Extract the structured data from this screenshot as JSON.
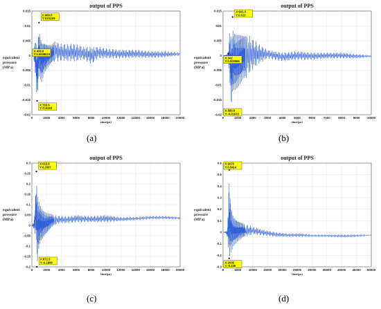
{
  "colors": {
    "signal": "#2a5bd7",
    "annotation_fill": "#ffff00",
    "grid": "#d8d8d8"
  },
  "chart_data": [
    {
      "panel_label": "(a)",
      "type": "line",
      "title": "output of PPS",
      "xlabel": "time(μs)",
      "ylabel": [
        "equivalent",
        "pressure",
        "(MPa)"
      ],
      "xlim": [
        0,
        20000
      ],
      "ylim": [
        -0.02,
        0.015
      ],
      "xticks": [
        0,
        2000,
        4000,
        6000,
        8000,
        10000,
        12000,
        14000,
        16000,
        18000,
        20000
      ],
      "xtick_labels": [
        "0",
        "2000",
        "4000",
        "6000",
        "8000",
        "10000",
        "12000",
        "14000",
        "16000",
        "18000",
        "20000"
      ],
      "yticks": [
        -0.02,
        -0.015,
        -0.01,
        -0.005,
        0,
        0.005,
        0.01,
        0.015
      ],
      "ytick_labels": [
        "-0.02",
        "-0.015",
        "-0.01",
        "-0.005",
        "0",
        "0.005",
        "0.01",
        "0.015"
      ],
      "grid": true,
      "annotations": [
        {
          "x": 960.5,
          "y": 0.01109,
          "lines": [
            "X:960.5",
            "Y:0.01109"
          ],
          "box": "right-above"
        },
        {
          "x": 438.8,
          "y": 0.000965,
          "lines": [
            "X:438.8",
            "Y:0.0009619"
          ],
          "box": "left"
        },
        {
          "x": 703.6,
          "y": -0.0153,
          "lines": [
            "X:703.6",
            "Y:-0.0153"
          ],
          "box": "right-below"
        }
      ],
      "envelope": [
        [
          0,
          0,
          0
        ],
        [
          250,
          0.0005,
          -0.0008
        ],
        [
          450,
          0.007,
          -0.006
        ],
        [
          700,
          0.005,
          -0.0153
        ],
        [
          960,
          0.0111,
          -0.007
        ],
        [
          1300,
          0.007,
          -0.009
        ],
        [
          1700,
          0.006,
          -0.006
        ],
        [
          2100,
          0.0045,
          -0.0045
        ],
        [
          2600,
          0.004,
          -0.003
        ],
        [
          3200,
          0.005,
          -0.002
        ],
        [
          4000,
          0.004,
          -0.002
        ],
        [
          5000,
          0.004,
          -0.002
        ],
        [
          6000,
          0.004,
          -0.002
        ],
        [
          7000,
          0.003,
          -0.0015
        ],
        [
          8000,
          0.003,
          -0.003
        ],
        [
          9000,
          0.003,
          -0.001
        ],
        [
          10000,
          0.0025,
          -0.001
        ],
        [
          12000,
          0.002,
          -0.001
        ],
        [
          14000,
          0.002,
          -0.0008
        ],
        [
          16000,
          0.0015,
          -0.0008
        ],
        [
          18000,
          0.0014,
          -0.0006
        ],
        [
          20000,
          0.001,
          0.0
        ]
      ]
    },
    {
      "panel_label": "(b)",
      "type": "line",
      "title": "output of PPS",
      "xlabel": "time(μs)",
      "ylabel": [
        "equivalent",
        "pressure",
        "(MPa)"
      ],
      "xlim": [
        0,
        10000
      ],
      "ylim": [
        -0.02,
        0.015
      ],
      "xticks": [
        0,
        1000,
        2000,
        3000,
        4000,
        5000,
        6000,
        7000,
        8000,
        9000,
        10000
      ],
      "xtick_labels": [
        "0",
        "1000",
        "2000",
        "3000",
        "4000",
        "5000",
        "6000",
        "7000",
        "8000",
        "9000",
        "10000"
      ],
      "yticks": [
        -0.02,
        -0.015,
        -0.01,
        -0.005,
        0,
        0.005,
        0.01,
        0.015
      ],
      "ytick_labels": [
        "-0.02",
        "-0.015",
        "-0.01",
        "-0.005",
        "0",
        "0.005",
        "0.01",
        "0.015"
      ],
      "grid": true,
      "annotations": [
        {
          "x": 641.3,
          "y": 0.013,
          "lines": [
            "X:641.3",
            "Y:0.013"
          ],
          "box": "right-above"
        },
        {
          "x": 342,
          "y": 0.000596,
          "lines": [
            "X:342",
            "Y:0.000596"
          ],
          "box": "left-below"
        },
        {
          "x": 589.8,
          "y": -0.01933,
          "lines": [
            "X:589.8",
            "Y:-0.01933"
          ],
          "box": "left-below"
        }
      ],
      "envelope": [
        [
          0,
          0,
          0
        ],
        [
          200,
          0.0003,
          -0.0003
        ],
        [
          342,
          0.0006,
          -0.0006
        ],
        [
          450,
          0.011,
          -0.009
        ],
        [
          590,
          0.009,
          -0.0193
        ],
        [
          641,
          0.013,
          -0.012
        ],
        [
          800,
          0.01,
          -0.012
        ],
        [
          1000,
          0.009,
          -0.011
        ],
        [
          1300,
          0.008,
          -0.009
        ],
        [
          1700,
          0.007,
          -0.007
        ],
        [
          2000,
          0.006,
          -0.005
        ],
        [
          2400,
          0.004,
          -0.003
        ],
        [
          3000,
          0.002,
          -0.001
        ],
        [
          4000,
          0.001,
          -0.002
        ],
        [
          5000,
          0.0015,
          -0.0015
        ],
        [
          6000,
          0.001,
          -0.0015
        ],
        [
          7000,
          0.001,
          -0.001
        ],
        [
          8000,
          0.001,
          -0.001
        ],
        [
          9000,
          0.0005,
          -0.001
        ],
        [
          10000,
          0.0,
          -0.0005
        ]
      ]
    },
    {
      "panel_label": "(c)",
      "type": "line",
      "title": "output of PPS",
      "xlabel": "time(μs)",
      "ylabel": [
        "equivalent",
        "pressure",
        "(MPa)"
      ],
      "xlim": [
        0,
        20000
      ],
      "ylim": [
        -0.2,
        0.3
      ],
      "xticks": [
        0,
        2000,
        4000,
        6000,
        8000,
        10000,
        12000,
        14000,
        16000,
        18000,
        20000
      ],
      "xtick_labels": [
        "0",
        "2000",
        "4000",
        "6000",
        "8000",
        "10000",
        "12000",
        "14000",
        "16000",
        "18000",
        "20000"
      ],
      "yticks": [
        -0.2,
        -0.15,
        -0.1,
        -0.05,
        0,
        0.05,
        0.1,
        0.15,
        0.2,
        0.25,
        0.3
      ],
      "ytick_labels": [
        "-0.2",
        "-0.15",
        "-0.1",
        "-0.05",
        "0",
        "0.05",
        "0.1",
        "0.15",
        "0.2",
        "0.25",
        "0.3"
      ],
      "grid": true,
      "annotations": [
        {
          "x": 613.6,
          "y": 0.2597,
          "lines": [
            "X:613.6",
            "Y:0.2597"
          ],
          "box": "right-above"
        },
        {
          "x": 672.3,
          "y": -0.1999,
          "lines": [
            "X:672.3",
            "Y:-0.1999"
          ],
          "box": "right-above"
        }
      ],
      "envelope": [
        [
          0,
          0,
          0
        ],
        [
          300,
          0.02,
          -0.02
        ],
        [
          614,
          0.2597,
          -0.08
        ],
        [
          700,
          0.2,
          -0.1999
        ],
        [
          900,
          0.16,
          -0.12
        ],
        [
          1200,
          0.12,
          -0.08
        ],
        [
          1600,
          0.09,
          -0.06
        ],
        [
          2000,
          0.07,
          -0.04
        ],
        [
          2500,
          0.06,
          -0.02
        ],
        [
          3000,
          0.05,
          0.0
        ],
        [
          4000,
          0.045,
          0.01
        ],
        [
          5000,
          0.045,
          0.01
        ],
        [
          6000,
          0.05,
          0.015
        ],
        [
          8000,
          0.045,
          0.015
        ],
        [
          10000,
          0.05,
          0.015
        ],
        [
          12000,
          0.04,
          0.02
        ],
        [
          14000,
          0.04,
          0.025
        ],
        [
          16000,
          0.045,
          0.03
        ],
        [
          18000,
          0.045,
          0.03
        ],
        [
          20000,
          0.04,
          0.03
        ]
      ]
    },
    {
      "panel_label": "(d)",
      "type": "line",
      "title": "output of PPS",
      "xlabel": "time(μs)",
      "ylabel": [
        "equivalent",
        "pressure",
        "(MPa)"
      ],
      "xlim": [
        0,
        50000
      ],
      "ylim": [
        -0.3,
        0.6
      ],
      "xticks": [
        0,
        5000,
        10000,
        15000,
        20000,
        25000,
        30000,
        35000,
        40000,
        45000,
        50000
      ],
      "xtick_labels": [
        "0",
        "5000",
        "10000",
        "15000",
        "20000",
        "25000",
        "30000",
        "35000",
        "40000",
        "45000",
        "50000"
      ],
      "yticks": [
        -0.3,
        -0.2,
        -0.1,
        0,
        0.1,
        0.2,
        0.3,
        0.4,
        0.5,
        0.6
      ],
      "ytick_labels": [
        "-0.3",
        "-0.2",
        "-0.1",
        "0",
        "0.1",
        "0.2",
        "0.3",
        "0.4",
        "0.5",
        "0.6"
      ],
      "grid": true,
      "annotations": [
        {
          "x": 2070,
          "y": 0.5414,
          "lines": [
            "X:2070",
            "Y:0.5414"
          ],
          "box": "left-above"
        },
        {
          "x": 2030,
          "y": -0.226,
          "lines": [
            "X:2030",
            "Y:-0.226"
          ],
          "box": "left-below"
        }
      ],
      "envelope": [
        [
          0,
          0,
          0
        ],
        [
          1000,
          0.01,
          -0.01
        ],
        [
          1500,
          0.03,
          -0.05
        ],
        [
          2070,
          0.5414,
          -0.226
        ],
        [
          2600,
          0.3,
          -0.18
        ],
        [
          3500,
          0.18,
          -0.12
        ],
        [
          5000,
          0.12,
          -0.08
        ],
        [
          7000,
          0.08,
          -0.05
        ],
        [
          10000,
          0.05,
          -0.02
        ],
        [
          14000,
          0.02,
          -0.03
        ],
        [
          18000,
          0.0,
          -0.04
        ],
        [
          22000,
          -0.01,
          -0.04
        ],
        [
          26000,
          -0.01,
          -0.04
        ],
        [
          30000,
          -0.02,
          -0.04
        ],
        [
          35000,
          -0.02,
          -0.04
        ],
        [
          40000,
          -0.02,
          -0.045
        ],
        [
          45000,
          -0.02,
          -0.04
        ],
        [
          50000,
          -0.02,
          -0.03
        ]
      ]
    }
  ]
}
